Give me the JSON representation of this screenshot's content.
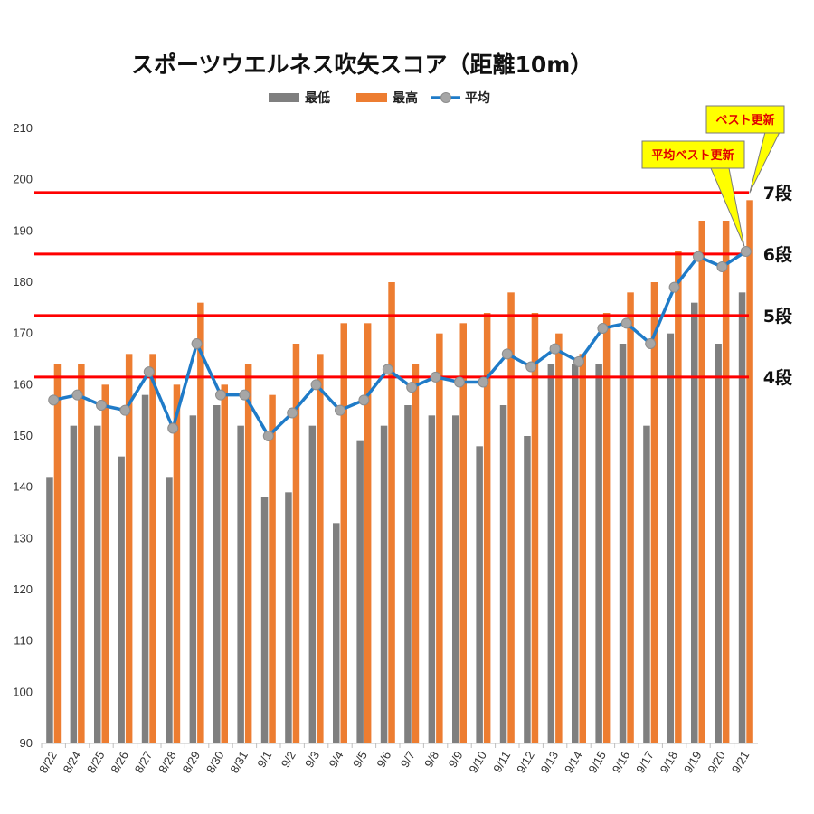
{
  "chart_data": {
    "type": "bar",
    "title": "スポーツウエルネス吹矢スコア（距離10m）",
    "categories": [
      "8/22",
      "8/24",
      "8/25",
      "8/26",
      "8/27",
      "8/28",
      "8/29",
      "8/30",
      "8/31",
      "9/1",
      "9/2",
      "9/3",
      "9/4",
      "9/5",
      "9/6",
      "9/7",
      "9/8",
      "9/9",
      "9/10",
      "9/11",
      "9/12",
      "9/13",
      "9/14",
      "9/15",
      "9/16",
      "9/17",
      "9/18",
      "9/19",
      "9/20",
      "9/21"
    ],
    "series": [
      {
        "name": "最低",
        "kind": "bar",
        "color": "#7f7f7f",
        "values": [
          142,
          152,
          152,
          146,
          158,
          142,
          154,
          156,
          152,
          138,
          139,
          152,
          133,
          149,
          152,
          156,
          154,
          154,
          148,
          156,
          150,
          164,
          164,
          164,
          168,
          152,
          170,
          176,
          168,
          178
        ]
      },
      {
        "name": "最高",
        "kind": "bar",
        "color": "#ed7d31",
        "values": [
          164,
          164,
          160,
          166,
          166,
          160,
          176,
          160,
          164,
          158,
          168,
          166,
          172,
          172,
          180,
          164,
          170,
          172,
          174,
          178,
          174,
          170,
          166,
          174,
          178,
          180,
          186,
          192,
          192,
          196
        ]
      },
      {
        "name": "平均",
        "kind": "line",
        "color": "#1f7bc8",
        "marker_color": "#a6a6a6",
        "values": [
          157,
          158,
          156,
          155,
          162.5,
          151.5,
          168,
          158,
          158,
          150,
          154.5,
          160,
          155,
          157,
          163,
          159.5,
          161.5,
          160.5,
          160.5,
          166,
          163.5,
          167,
          164.5,
          171,
          172,
          168,
          179,
          185,
          183,
          186
        ]
      }
    ],
    "ylim": [
      90,
      210
    ],
    "yticks": [
      "210",
      "200",
      "190",
      "180",
      "170",
      "160",
      "150",
      "140",
      "130",
      "120",
      "110",
      "100",
      "90"
    ],
    "xlabel": "",
    "ylabel": "",
    "legend_position": "top",
    "reference_lines": [
      {
        "value": 161.5,
        "label": "4段",
        "color": "#ff0000"
      },
      {
        "value": 173.5,
        "label": "5段",
        "color": "#ff0000"
      },
      {
        "value": 185.5,
        "label": "6段",
        "color": "#ff0000"
      },
      {
        "value": 197.5,
        "label": "7段",
        "color": "#ff0000"
      }
    ],
    "annotations": [
      {
        "text": "ベスト更新",
        "category": "9/21",
        "series": "最高"
      },
      {
        "text": "平均ベスト更新",
        "category": "9/21",
        "series": "平均"
      }
    ],
    "grid": false
  }
}
